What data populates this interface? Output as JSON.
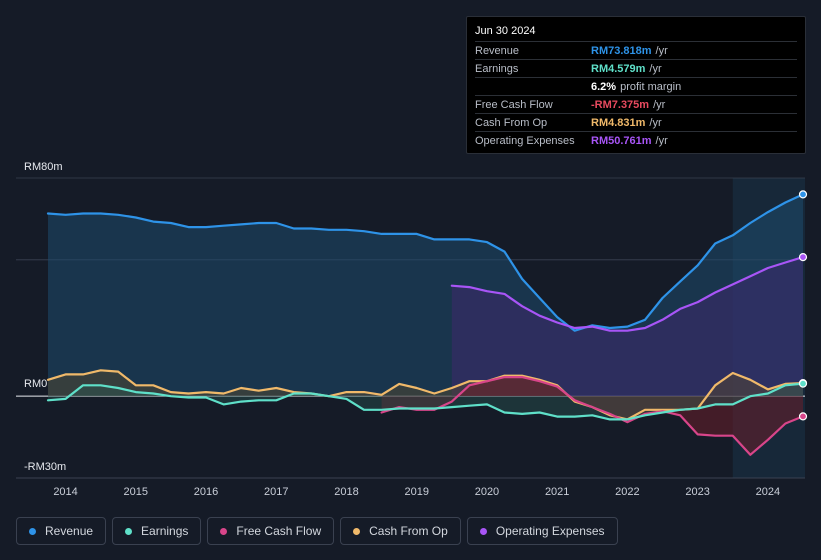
{
  "tooltip": {
    "date": "Jun 30 2024",
    "rows": [
      {
        "label": "Revenue",
        "value": "RM73.818m",
        "unit": "/yr",
        "color": "#2e93e8"
      },
      {
        "label": "Earnings",
        "value": "RM4.579m",
        "unit": "/yr",
        "color": "#5fe0c9"
      },
      {
        "label": "",
        "value": "6.2%",
        "unit": "profit margin",
        "color": "#ffffff"
      },
      {
        "label": "Free Cash Flow",
        "value": "-RM7.375m",
        "unit": "/yr",
        "color": "#e84a5f"
      },
      {
        "label": "Cash From Op",
        "value": "RM4.831m",
        "unit": "/yr",
        "color": "#f0b96a"
      },
      {
        "label": "Operating Expenses",
        "value": "RM50.761m",
        "unit": "/yr",
        "color": "#a855f7"
      }
    ]
  },
  "legend": [
    {
      "label": "Revenue",
      "color": "#2e93e8"
    },
    {
      "label": "Earnings",
      "color": "#5fe0c9"
    },
    {
      "label": "Free Cash Flow",
      "color": "#d8458a"
    },
    {
      "label": "Cash From Op",
      "color": "#f0b96a"
    },
    {
      "label": "Operating Expenses",
      "color": "#a855f7"
    }
  ],
  "chart_data": {
    "type": "area",
    "title": "",
    "xlabel": "",
    "ylabel": "",
    "ylim": [
      -30,
      80
    ],
    "xlim": [
      2013.75,
      2024.5
    ],
    "y_tick_labels": [
      {
        "value": 80,
        "label": "RM80m"
      },
      {
        "value": 0,
        "label": "RM0"
      },
      {
        "value": -30,
        "label": "-RM30m"
      }
    ],
    "x_tick_labels": [
      {
        "value": 2014,
        "label": "2014"
      },
      {
        "value": 2015,
        "label": "2015"
      },
      {
        "value": 2016,
        "label": "2016"
      },
      {
        "value": 2017,
        "label": "2017"
      },
      {
        "value": 2018,
        "label": "2018"
      },
      {
        "value": 2019,
        "label": "2019"
      },
      {
        "value": 2020,
        "label": "2020"
      },
      {
        "value": 2021,
        "label": "2021"
      },
      {
        "value": 2022,
        "label": "2022"
      },
      {
        "value": 2023,
        "label": "2023"
      },
      {
        "value": 2024,
        "label": "2024"
      }
    ],
    "highlight_start": 2023.5,
    "series": [
      {
        "name": "Revenue",
        "color": "#2e93e8",
        "fill": "#1e4a6e",
        "fill_opacity": 0.55,
        "points": [
          [
            2013.75,
            67
          ],
          [
            2014,
            66.5
          ],
          [
            2014.25,
            67
          ],
          [
            2014.5,
            67
          ],
          [
            2014.75,
            66.5
          ],
          [
            2015,
            65.5
          ],
          [
            2015.25,
            64
          ],
          [
            2015.5,
            63.5
          ],
          [
            2015.75,
            62
          ],
          [
            2016,
            62
          ],
          [
            2016.25,
            62.5
          ],
          [
            2016.5,
            63
          ],
          [
            2016.75,
            63.5
          ],
          [
            2017,
            63.5
          ],
          [
            2017.25,
            61.5
          ],
          [
            2017.5,
            61.5
          ],
          [
            2017.75,
            61
          ],
          [
            2018,
            61
          ],
          [
            2018.25,
            60.5
          ],
          [
            2018.5,
            59.5
          ],
          [
            2018.75,
            59.5
          ],
          [
            2019,
            59.5
          ],
          [
            2019.25,
            57.5
          ],
          [
            2019.5,
            57.5
          ],
          [
            2019.75,
            57.5
          ],
          [
            2020,
            56.5
          ],
          [
            2020.25,
            53
          ],
          [
            2020.5,
            43
          ],
          [
            2020.75,
            36
          ],
          [
            2021,
            29
          ],
          [
            2021.25,
            24
          ],
          [
            2021.5,
            26
          ],
          [
            2021.75,
            25
          ],
          [
            2022,
            25.5
          ],
          [
            2022.25,
            28
          ],
          [
            2022.5,
            36
          ],
          [
            2022.75,
            42
          ],
          [
            2023,
            48
          ],
          [
            2023.25,
            56
          ],
          [
            2023.5,
            59
          ],
          [
            2023.75,
            63.5
          ],
          [
            2024,
            67.5
          ],
          [
            2024.25,
            71
          ],
          [
            2024.5,
            74
          ]
        ]
      },
      {
        "name": "Operating Expenses",
        "color": "#a855f7",
        "fill": "#3b2a6a",
        "fill_opacity": 0.6,
        "points": [
          [
            2019.5,
            40.5
          ],
          [
            2019.75,
            40
          ],
          [
            2020,
            38.5
          ],
          [
            2020.25,
            37.5
          ],
          [
            2020.5,
            33
          ],
          [
            2020.75,
            29.5
          ],
          [
            2021,
            27
          ],
          [
            2021.25,
            25
          ],
          [
            2021.5,
            25.5
          ],
          [
            2021.75,
            24
          ],
          [
            2022,
            24
          ],
          [
            2022.25,
            25
          ],
          [
            2022.5,
            28
          ],
          [
            2022.75,
            32
          ],
          [
            2023,
            34.5
          ],
          [
            2023.25,
            38
          ],
          [
            2023.5,
            41
          ],
          [
            2023.75,
            44
          ],
          [
            2024,
            47
          ],
          [
            2024.25,
            49
          ],
          [
            2024.5,
            51
          ]
        ]
      },
      {
        "name": "Cash From Op",
        "color": "#f0b96a",
        "fill": "#5a4a2a",
        "fill_opacity": 0.45,
        "points": [
          [
            2013.75,
            6
          ],
          [
            2014,
            8
          ],
          [
            2014.25,
            8
          ],
          [
            2014.5,
            9.5
          ],
          [
            2014.75,
            9
          ],
          [
            2015,
            4
          ],
          [
            2015.25,
            4
          ],
          [
            2015.5,
            1.5
          ],
          [
            2015.75,
            1
          ],
          [
            2016,
            1.5
          ],
          [
            2016.25,
            1
          ],
          [
            2016.5,
            3
          ],
          [
            2016.75,
            2
          ],
          [
            2017,
            3
          ],
          [
            2017.25,
            1.5
          ],
          [
            2017.5,
            1
          ],
          [
            2017.75,
            0
          ],
          [
            2018,
            1.5
          ],
          [
            2018.25,
            1.5
          ],
          [
            2018.5,
            0.5
          ],
          [
            2018.75,
            4.5
          ],
          [
            2019,
            3
          ],
          [
            2019.25,
            1
          ],
          [
            2019.5,
            3
          ],
          [
            2019.75,
            5.5
          ],
          [
            2020,
            5.5
          ],
          [
            2020.25,
            7.5
          ],
          [
            2020.5,
            7.5
          ],
          [
            2020.75,
            6
          ],
          [
            2021,
            4
          ],
          [
            2021.25,
            -2
          ],
          [
            2021.5,
            -4
          ],
          [
            2021.75,
            -7
          ],
          [
            2022,
            -8.5
          ],
          [
            2022.25,
            -5
          ],
          [
            2022.5,
            -5
          ],
          [
            2022.75,
            -5
          ],
          [
            2023,
            -4.5
          ],
          [
            2023.25,
            4
          ],
          [
            2023.5,
            8.5
          ],
          [
            2023.75,
            6
          ],
          [
            2024,
            2.5
          ],
          [
            2024.25,
            4.5
          ],
          [
            2024.5,
            4.8
          ]
        ]
      },
      {
        "name": "Free Cash Flow",
        "color": "#d8458a",
        "fill": "#6a1e2a",
        "fill_opacity": 0.55,
        "points": [
          [
            2018.5,
            -6
          ],
          [
            2018.75,
            -4
          ],
          [
            2019,
            -5
          ],
          [
            2019.25,
            -5
          ],
          [
            2019.5,
            -2
          ],
          [
            2019.75,
            4
          ],
          [
            2020,
            5.5
          ],
          [
            2020.25,
            7
          ],
          [
            2020.5,
            7
          ],
          [
            2020.75,
            5.5
          ],
          [
            2021,
            3.5
          ],
          [
            2021.25,
            -1.5
          ],
          [
            2021.5,
            -4
          ],
          [
            2021.75,
            -6.5
          ],
          [
            2022,
            -9.5
          ],
          [
            2022.25,
            -6.5
          ],
          [
            2022.5,
            -5.5
          ],
          [
            2022.75,
            -7
          ],
          [
            2023,
            -14
          ],
          [
            2023.25,
            -14.5
          ],
          [
            2023.5,
            -14.5
          ],
          [
            2023.75,
            -21.5
          ],
          [
            2024,
            -16
          ],
          [
            2024.25,
            -10
          ],
          [
            2024.5,
            -7.4
          ]
        ]
      },
      {
        "name": "Earnings",
        "color": "#5fe0c9",
        "fill": "#2a5a55",
        "fill_opacity": 0.4,
        "points": [
          [
            2013.75,
            -1.5
          ],
          [
            2014,
            -1
          ],
          [
            2014.25,
            4
          ],
          [
            2014.5,
            4
          ],
          [
            2014.75,
            3
          ],
          [
            2015,
            1.5
          ],
          [
            2015.25,
            1
          ],
          [
            2015.5,
            0
          ],
          [
            2015.75,
            -0.5
          ],
          [
            2016,
            -0.5
          ],
          [
            2016.25,
            -3
          ],
          [
            2016.5,
            -2
          ],
          [
            2016.75,
            -1.5
          ],
          [
            2017,
            -1.5
          ],
          [
            2017.25,
            1
          ],
          [
            2017.5,
            1
          ],
          [
            2017.75,
            0
          ],
          [
            2018,
            -1
          ],
          [
            2018.25,
            -5
          ],
          [
            2018.5,
            -5
          ],
          [
            2018.75,
            -4.5
          ],
          [
            2019,
            -4.5
          ],
          [
            2019.25,
            -4.5
          ],
          [
            2019.5,
            -4
          ],
          [
            2019.75,
            -3.5
          ],
          [
            2020,
            -3
          ],
          [
            2020.25,
            -6
          ],
          [
            2020.5,
            -6.5
          ],
          [
            2020.75,
            -6
          ],
          [
            2021,
            -7.5
          ],
          [
            2021.25,
            -7.5
          ],
          [
            2021.5,
            -7
          ],
          [
            2021.75,
            -8.5
          ],
          [
            2022,
            -8.5
          ],
          [
            2022.25,
            -7
          ],
          [
            2022.5,
            -6
          ],
          [
            2022.75,
            -5
          ],
          [
            2023,
            -4.5
          ],
          [
            2023.25,
            -3
          ],
          [
            2023.5,
            -3
          ],
          [
            2023.75,
            0
          ],
          [
            2024,
            1
          ],
          [
            2024.25,
            4
          ],
          [
            2024.5,
            4.6
          ]
        ]
      }
    ]
  }
}
